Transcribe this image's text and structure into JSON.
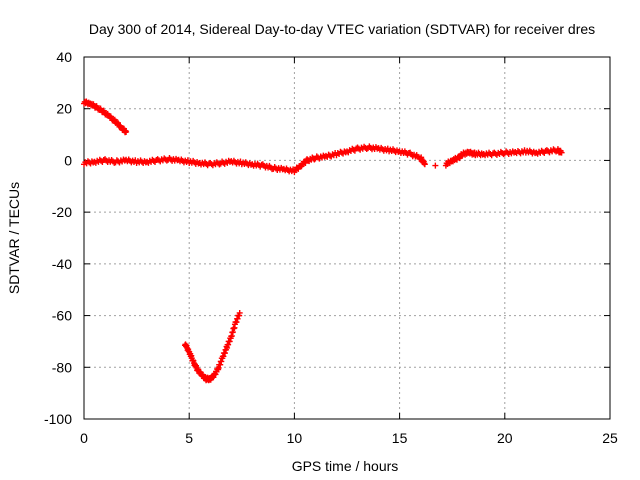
{
  "chart_data": {
    "type": "scatter",
    "title": "Day 300 of 2014, Sidereal Day-to-day VTEC variation (SDTVAR) for receiver dres",
    "xlabel": "GPS time / hours",
    "ylabel": "SDTVAR / TECUs",
    "xlim": [
      0,
      25
    ],
    "ylim": [
      -100,
      40
    ],
    "xticks": [
      0,
      5,
      10,
      15,
      20,
      25
    ],
    "yticks": [
      40,
      20,
      0,
      -20,
      -40,
      -60,
      -80,
      -100
    ],
    "grid": true,
    "legend": "none",
    "marker": "plus",
    "color": "#ff0000",
    "series": [
      {
        "name": "segment-1",
        "x": [
          0.0,
          0.3,
          0.6,
          0.9,
          1.2,
          1.5,
          1.8,
          2.0
        ],
        "y": [
          22.5,
          22,
          20.5,
          19,
          17,
          15,
          12.5,
          11
        ]
      },
      {
        "name": "segment-2",
        "x": [
          0.0,
          0.5,
          1.0,
          1.5,
          2.0,
          2.5,
          3.0,
          3.5,
          4.0,
          4.5,
          5.0,
          5.5,
          6.0,
          6.5,
          7.0,
          7.5,
          8.0,
          8.5,
          9.0,
          9.5,
          10.0,
          10.3,
          10.6,
          11.0,
          11.5,
          12.0,
          12.5,
          13.0,
          13.5,
          14.0,
          14.5,
          15.0,
          15.5,
          16.0,
          16.2
        ],
        "y": [
          -1,
          -0.5,
          0,
          -0.5,
          0,
          -0.5,
          -0.5,
          0,
          0.5,
          0,
          -0.5,
          -1,
          -1.5,
          -1,
          -0.5,
          -1,
          -1.5,
          -2,
          -3,
          -3.5,
          -4,
          -2,
          0,
          1,
          1.5,
          2.5,
          3.5,
          4.5,
          5,
          4.5,
          4,
          3.5,
          2.5,
          1,
          -1.5
        ]
      },
      {
        "name": "segment-3",
        "x": [
          4.8,
          5.0,
          5.2,
          5.4,
          5.6,
          5.8,
          6.0,
          6.2,
          6.4,
          6.6,
          6.8,
          7.0,
          7.2,
          7.4
        ],
        "y": [
          -71,
          -74,
          -78,
          -81,
          -83,
          -84.5,
          -84.5,
          -83,
          -80,
          -76,
          -72,
          -68,
          -63,
          -59
        ]
      },
      {
        "name": "segment-4",
        "x": [
          16.7
        ],
        "y": [
          -2
        ]
      },
      {
        "name": "segment-5",
        "x": [
          17.2,
          17.5,
          17.8,
          18.0,
          18.3,
          18.6,
          19.0,
          19.5,
          20.0,
          20.5,
          21.0,
          21.5,
          22.0,
          22.5,
          22.7
        ],
        "y": [
          -1.5,
          0,
          1,
          2.5,
          3,
          2.5,
          2.5,
          2.5,
          3,
          3,
          3.5,
          3,
          3.5,
          4,
          3
        ]
      }
    ]
  }
}
